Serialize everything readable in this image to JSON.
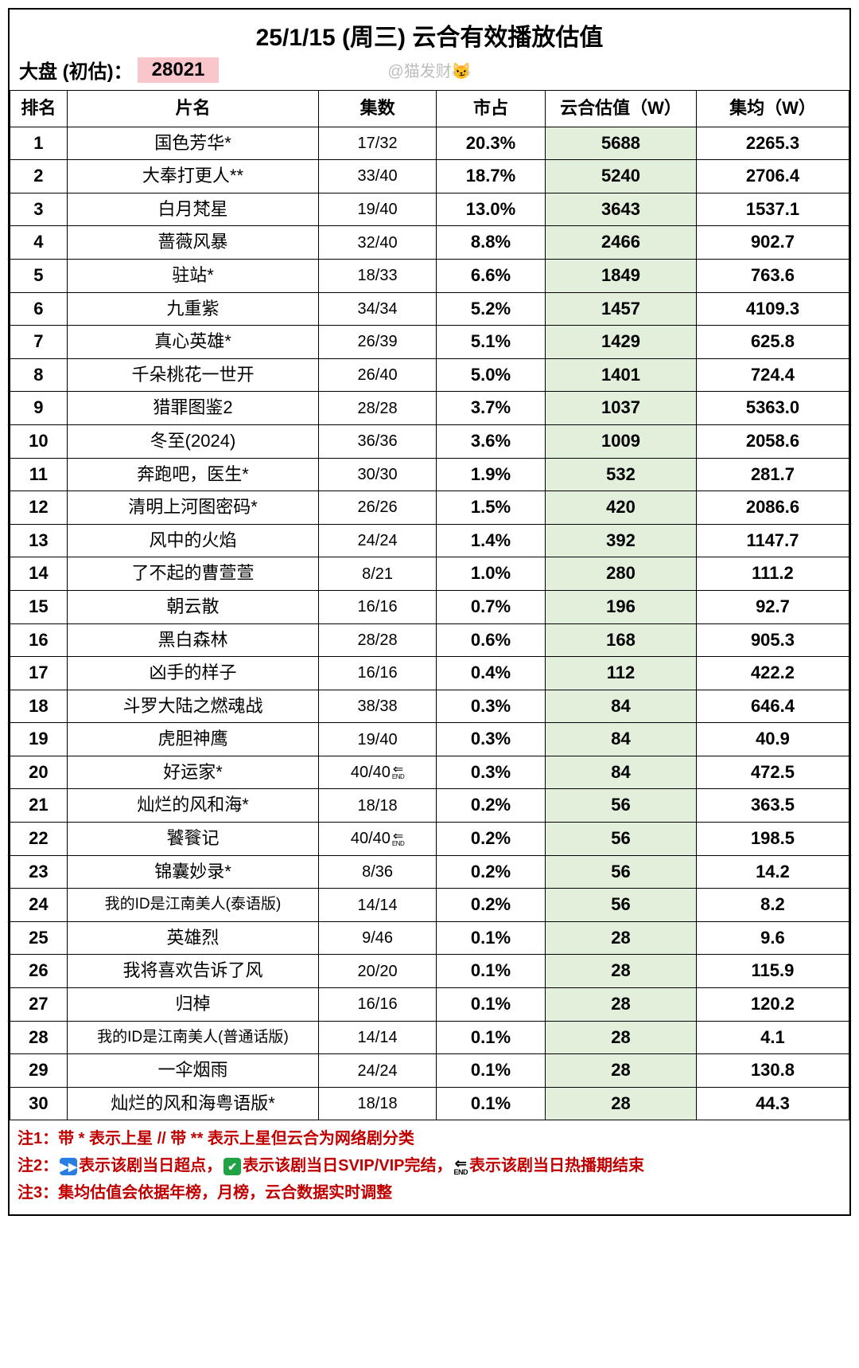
{
  "title": "25/1/15 (周三) 云合有效播放估值",
  "header": {
    "market_label": "大盘 (初估)：",
    "market_total": "28021",
    "watermark": "@猫发财😼"
  },
  "columns": [
    "排名",
    "片名",
    "集数",
    "市占",
    "云合估值（W）",
    "集均（W）"
  ],
  "styling": {
    "highlight_bg": "#f8c6cb",
    "est_column_bg": "#e2efda",
    "border_color": "#000000",
    "note_color": "#c00000",
    "watermark_color": "#bdbdbd",
    "title_fontsize": 30,
    "cell_fontsize": 22,
    "note_fontsize": 20
  },
  "rows": [
    {
      "rank": "1",
      "name": "国色芳华*",
      "ep": "17/32",
      "share": "20.3%",
      "est": "5688",
      "avg": "2265.3"
    },
    {
      "rank": "2",
      "name": "大奉打更人**",
      "ep": "33/40",
      "share": "18.7%",
      "est": "5240",
      "avg": "2706.4"
    },
    {
      "rank": "3",
      "name": "白月梵星",
      "ep": "19/40",
      "share": "13.0%",
      "est": "3643",
      "avg": "1537.1"
    },
    {
      "rank": "4",
      "name": "蔷薇风暴",
      "ep": "32/40",
      "share": "8.8%",
      "est": "2466",
      "avg": "902.7"
    },
    {
      "rank": "5",
      "name": "驻站*",
      "ep": "18/33",
      "share": "6.6%",
      "est": "1849",
      "avg": "763.6"
    },
    {
      "rank": "6",
      "name": "九重紫",
      "ep": "34/34",
      "share": "5.2%",
      "est": "1457",
      "avg": "4109.3"
    },
    {
      "rank": "7",
      "name": "真心英雄*",
      "ep": "26/39",
      "share": "5.1%",
      "est": "1429",
      "avg": "625.8"
    },
    {
      "rank": "8",
      "name": "千朵桃花一世开",
      "ep": "26/40",
      "share": "5.0%",
      "est": "1401",
      "avg": "724.4"
    },
    {
      "rank": "9",
      "name": "猎罪图鉴2",
      "ep": "28/28",
      "share": "3.7%",
      "est": "1037",
      "avg": "5363.0"
    },
    {
      "rank": "10",
      "name": "冬至(2024)",
      "ep": "36/36",
      "share": "3.6%",
      "est": "1009",
      "avg": "2058.6"
    },
    {
      "rank": "11",
      "name": "奔跑吧，医生*",
      "ep": "30/30",
      "share": "1.9%",
      "est": "532",
      "avg": "281.7"
    },
    {
      "rank": "12",
      "name": "清明上河图密码*",
      "ep": "26/26",
      "share": "1.5%",
      "est": "420",
      "avg": "2086.6"
    },
    {
      "rank": "13",
      "name": "风中的火焰",
      "ep": "24/24",
      "share": "1.4%",
      "est": "392",
      "avg": "1147.7"
    },
    {
      "rank": "14",
      "name": "了不起的曹萱萱",
      "ep": "8/21",
      "share": "1.0%",
      "est": "280",
      "avg": "111.2"
    },
    {
      "rank": "15",
      "name": "朝云散",
      "ep": "16/16",
      "share": "0.7%",
      "est": "196",
      "avg": "92.7"
    },
    {
      "rank": "16",
      "name": "黑白森林",
      "ep": "28/28",
      "share": "0.6%",
      "est": "168",
      "avg": "905.3"
    },
    {
      "rank": "17",
      "name": "凶手的样子",
      "ep": "16/16",
      "share": "0.4%",
      "est": "112",
      "avg": "422.2"
    },
    {
      "rank": "18",
      "name": "斗罗大陆之燃魂战",
      "ep": "38/38",
      "share": "0.3%",
      "est": "84",
      "avg": "646.4"
    },
    {
      "rank": "19",
      "name": "虎胆神鹰",
      "ep": "19/40",
      "share": "0.3%",
      "est": "84",
      "avg": "40.9"
    },
    {
      "rank": "20",
      "name": "好运家*",
      "ep": "40/40",
      "end": true,
      "share": "0.3%",
      "est": "84",
      "avg": "472.5"
    },
    {
      "rank": "21",
      "name": "灿烂的风和海*",
      "ep": "18/18",
      "share": "0.2%",
      "est": "56",
      "avg": "363.5"
    },
    {
      "rank": "22",
      "name": "饕餮记",
      "ep": "40/40",
      "end": true,
      "share": "0.2%",
      "est": "56",
      "avg": "198.5"
    },
    {
      "rank": "23",
      "name": "锦囊妙录*",
      "ep": "8/36",
      "share": "0.2%",
      "est": "56",
      "avg": "14.2"
    },
    {
      "rank": "24",
      "name": "我的ID是江南美人(泰语版)",
      "small": true,
      "ep": "14/14",
      "share": "0.2%",
      "est": "56",
      "avg": "8.2"
    },
    {
      "rank": "25",
      "name": "英雄烈",
      "ep": "9/46",
      "share": "0.1%",
      "est": "28",
      "avg": "9.6"
    },
    {
      "rank": "26",
      "name": "我将喜欢告诉了风",
      "ep": "20/20",
      "share": "0.1%",
      "est": "28",
      "avg": "115.9"
    },
    {
      "rank": "27",
      "name": "归棹",
      "ep": "16/16",
      "share": "0.1%",
      "est": "28",
      "avg": "120.2"
    },
    {
      "rank": "28",
      "name": "我的ID是江南美人(普通话版)",
      "small": true,
      "ep": "14/14",
      "share": "0.1%",
      "est": "28",
      "avg": "4.1"
    },
    {
      "rank": "29",
      "name": "一伞烟雨",
      "ep": "24/24",
      "share": "0.1%",
      "est": "28",
      "avg": "130.8"
    },
    {
      "rank": "30",
      "name": "灿烂的风和海粤语版*",
      "ep": "18/18",
      "share": "0.1%",
      "est": "28",
      "avg": "44.3"
    }
  ],
  "notes": {
    "n1_pre": "注1：带 * 表示上星 // 带 ** 表示上星但云合为网络剧分类",
    "n2_a": "注2：",
    "n2_b": "表示该剧当日超点，",
    "n2_c": "表示该剧当日SVIP/VIP完结，",
    "n2_d": "表示该剧当日热播期结束",
    "n3": "注3：集均估值会依据年榜，月榜，云合数据实时调整"
  }
}
